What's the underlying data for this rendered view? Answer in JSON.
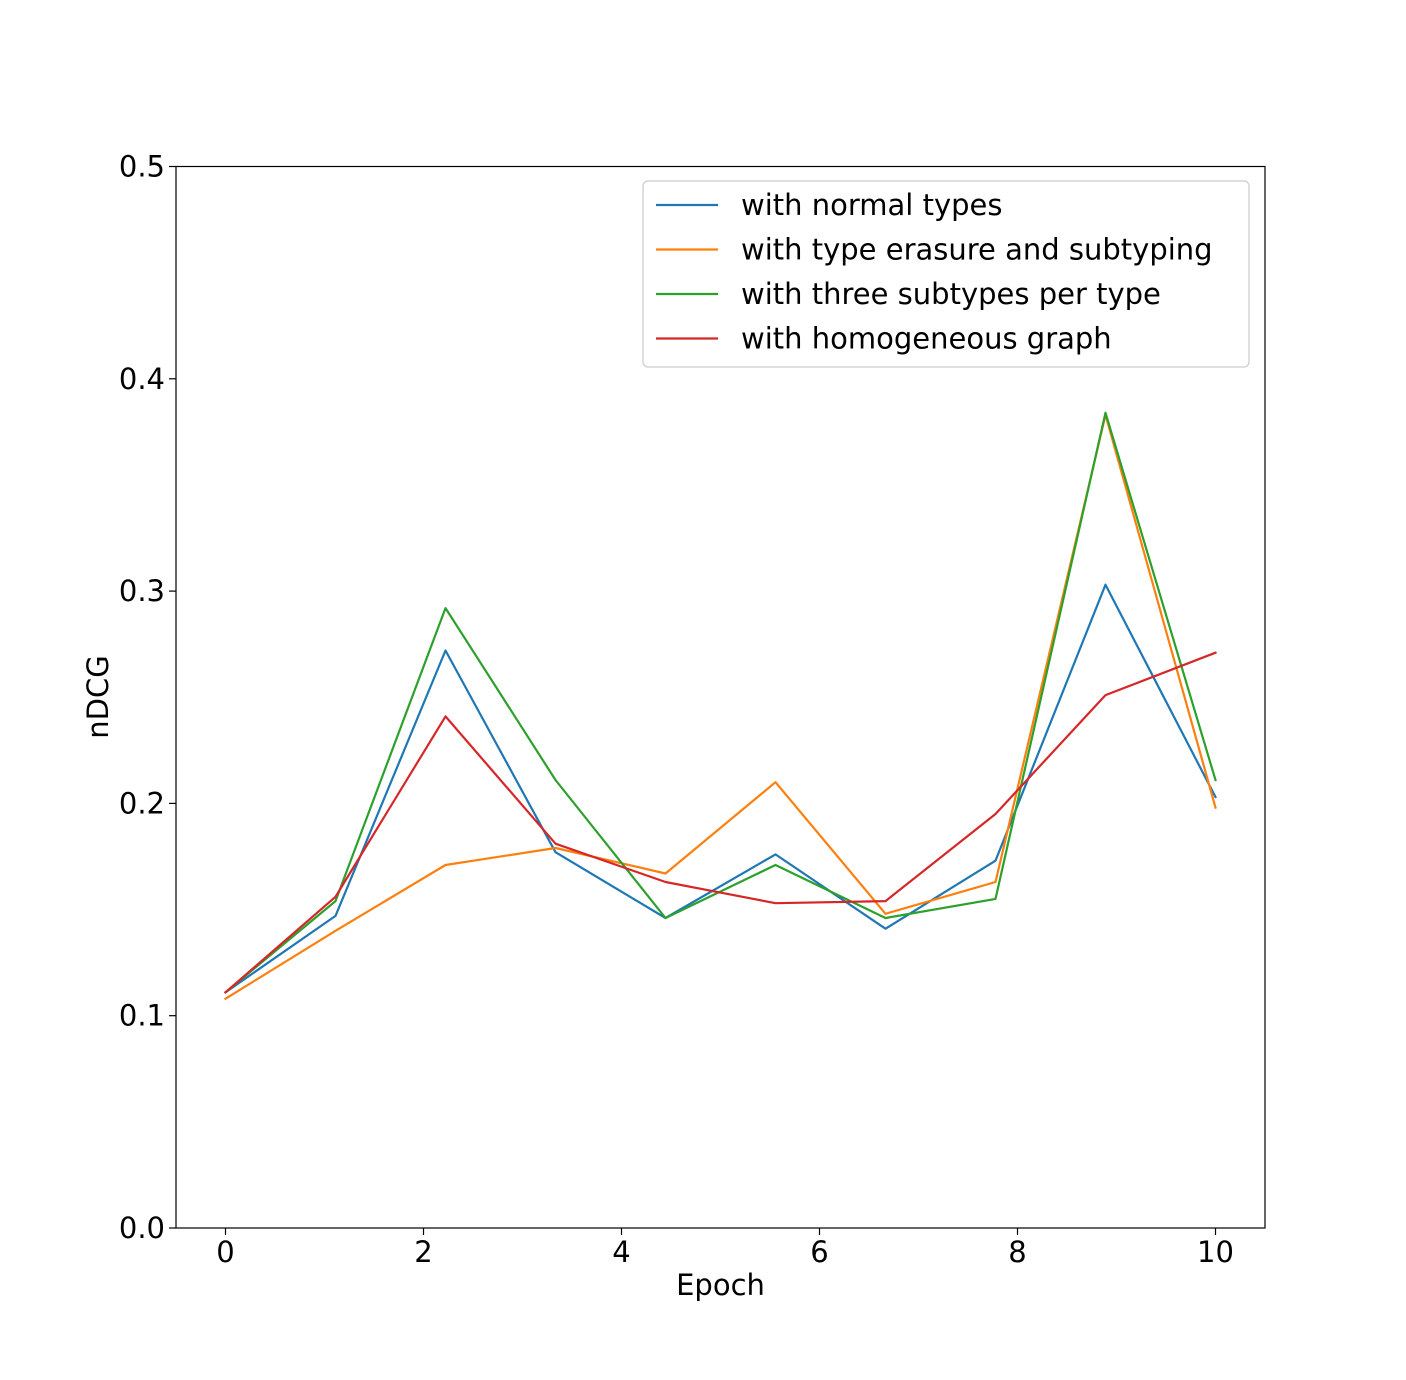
{
  "chart_data": {
    "type": "line",
    "title": "",
    "xlabel": "Epoch",
    "ylabel": "nDCG",
    "xlim": [
      -0.5,
      10.5
    ],
    "ylim": [
      0.0,
      0.5
    ],
    "xticks": [
      0,
      2,
      4,
      6,
      8,
      10
    ],
    "xtick_labels": [
      "0",
      "2",
      "4",
      "6",
      "8",
      "10"
    ],
    "yticks": [
      0.0,
      0.1,
      0.2,
      0.3,
      0.4,
      0.5
    ],
    "ytick_labels": [
      "0.0",
      "0.1",
      "0.2",
      "0.3",
      "0.4",
      "0.5"
    ],
    "grid": false,
    "legend_position": "top-right",
    "x": [
      0,
      1.111,
      2.222,
      3.333,
      4.444,
      5.556,
      6.667,
      7.778,
      8.889,
      10
    ],
    "series": [
      {
        "name": "with normal types",
        "color": "#1f77b4",
        "values": [
          0.111,
          0.147,
          0.272,
          0.177,
          0.146,
          0.176,
          0.141,
          0.173,
          0.303,
          0.203
        ]
      },
      {
        "name": "with type erasure and subtyping",
        "color": "#ff7f0e",
        "values": [
          0.108,
          0.14,
          0.171,
          0.179,
          0.167,
          0.21,
          0.148,
          0.163,
          0.383,
          0.198
        ]
      },
      {
        "name": "with three subtypes per type",
        "color": "#2ca02c",
        "values": [
          0.111,
          0.154,
          0.292,
          0.211,
          0.146,
          0.171,
          0.146,
          0.155,
          0.384,
          0.211
        ]
      },
      {
        "name": "with homogeneous graph",
        "color": "#d62728",
        "values": [
          0.111,
          0.156,
          0.241,
          0.181,
          0.163,
          0.153,
          0.154,
          0.195,
          0.251,
          0.271
        ]
      }
    ]
  }
}
